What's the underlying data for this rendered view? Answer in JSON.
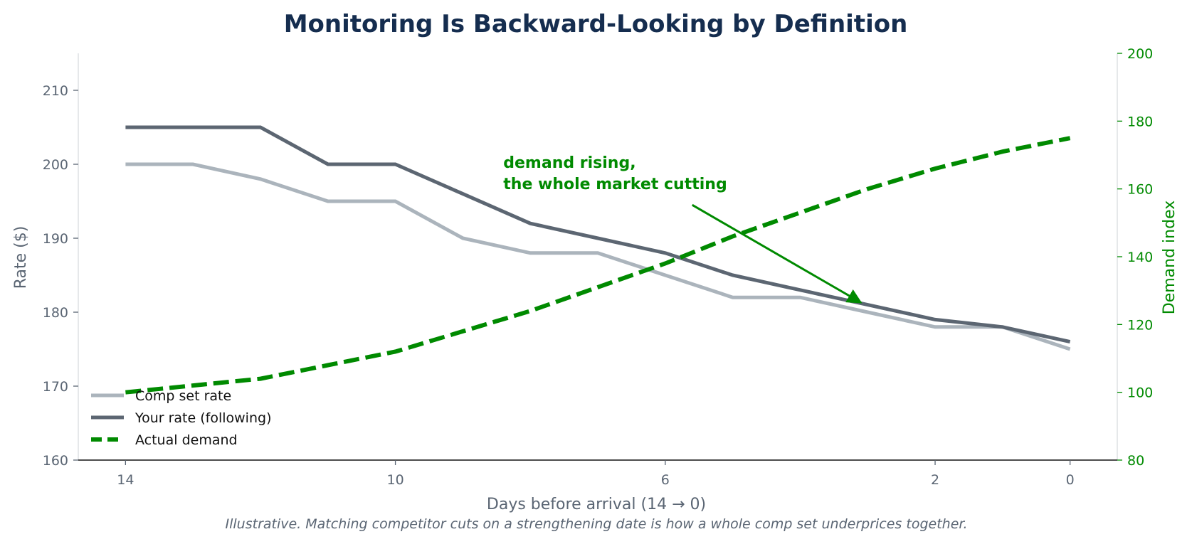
{
  "chart_data": {
    "type": "line",
    "title": "Monitoring Is Backward-Looking by Definition",
    "xlabel": "Days before arrival (14 → 0)",
    "ylabel": "Rate ($)",
    "y2label": "Demand index",
    "caption": "Illustrative. Matching competitor cuts on a strengthening date is how a whole comp set underprices together.",
    "x": [
      14,
      13,
      12,
      11,
      10,
      9,
      8,
      7,
      6,
      5,
      4,
      3,
      2,
      1,
      0
    ],
    "x_ticks": [
      14,
      10,
      6,
      2,
      0
    ],
    "xlim": [
      14.7,
      -0.7
    ],
    "ylim": [
      160,
      215
    ],
    "y_ticks": [
      160,
      170,
      180,
      190,
      200,
      210
    ],
    "y2lim": [
      80,
      200
    ],
    "y2_ticks": [
      80,
      100,
      120,
      140,
      160,
      180,
      200
    ],
    "grid": false,
    "legend_position": "lower-left",
    "series": [
      {
        "name": "Comp set rate",
        "axis": "left",
        "color": "#abb4bc",
        "style": "solid",
        "values": [
          200,
          200,
          198,
          195,
          195,
          190,
          188,
          188,
          185,
          182,
          182,
          180,
          178,
          178,
          175
        ]
      },
      {
        "name": "Your rate (following)",
        "axis": "left",
        "color": "#5c6672",
        "style": "solid",
        "values": [
          205,
          205,
          205,
          200,
          200,
          196,
          192,
          190,
          188,
          185,
          183,
          181,
          179,
          178,
          176
        ]
      },
      {
        "name": "Actual demand",
        "axis": "right",
        "color": "#008a00",
        "style": "dashed",
        "values": [
          100,
          102,
          104,
          108,
          112,
          118,
          124,
          131,
          138,
          146,
          153,
          160,
          166,
          171,
          175
        ]
      }
    ],
    "annotation": {
      "lines": [
        "demand rising,",
        "the whole market cutting"
      ],
      "target_x": 3.1,
      "target_y": 181.3,
      "text_x": 8.4,
      "text_y": 199.5,
      "arrow_start_x": 5.6,
      "arrow_start_y": 194.5,
      "color": "#008a00"
    }
  }
}
